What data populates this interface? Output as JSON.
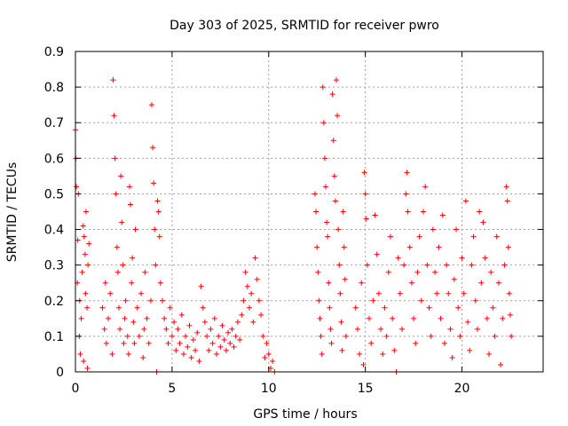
{
  "chart_data": {
    "type": "scatter",
    "title": "Day 303 of 2025, SRMTID for receiver pwro",
    "xlabel": "GPS time / hours",
    "ylabel": "SRMTID / TECUs",
    "xlim": [
      0,
      24.2
    ],
    "ylim": [
      0,
      0.9
    ],
    "xticks": [
      0,
      5,
      10,
      15,
      20
    ],
    "xtick_labels": [
      "0",
      "5",
      "10",
      "15",
      "20"
    ],
    "yticks": [
      0,
      0.1,
      0.2,
      0.3,
      0.4,
      0.5,
      0.6,
      0.7,
      0.8,
      0.9
    ],
    "ytick_labels": [
      "0",
      "0.1",
      "0.2",
      "0.3",
      "0.4",
      "0.5",
      "0.6",
      "0.7",
      "0.8",
      "0.9"
    ],
    "grid": true,
    "marker": "+",
    "color": "#ff0000",
    "series": [
      {
        "name": "SRMTID",
        "points": [
          [
            0.0,
            0.68
          ],
          [
            0.02,
            0.6
          ],
          [
            0.05,
            0.52
          ],
          [
            0.1,
            0.25
          ],
          [
            0.12,
            0.37
          ],
          [
            0.15,
            0.5
          ],
          [
            0.2,
            0.1
          ],
          [
            0.22,
            0.2
          ],
          [
            0.25,
            0.05
          ],
          [
            0.3,
            0.15
          ],
          [
            0.35,
            0.28
          ],
          [
            0.4,
            0.41
          ],
          [
            0.42,
            0.03
          ],
          [
            0.45,
            0.38
          ],
          [
            0.5,
            0.33
          ],
          [
            0.52,
            0.22
          ],
          [
            0.55,
            0.45
          ],
          [
            0.6,
            0.18
          ],
          [
            0.62,
            0.01
          ],
          [
            0.65,
            0.3
          ],
          [
            0.7,
            0.36
          ],
          [
            1.4,
            0.18
          ],
          [
            1.5,
            0.12
          ],
          [
            1.55,
            0.25
          ],
          [
            1.6,
            0.08
          ],
          [
            1.7,
            0.15
          ],
          [
            1.8,
            0.22
          ],
          [
            1.9,
            0.05
          ],
          [
            1.95,
            0.82
          ],
          [
            2.0,
            0.72
          ],
          [
            2.05,
            0.6
          ],
          [
            2.1,
            0.5
          ],
          [
            2.15,
            0.35
          ],
          [
            2.2,
            0.28
          ],
          [
            2.25,
            0.18
          ],
          [
            2.3,
            0.12
          ],
          [
            2.35,
            0.55
          ],
          [
            2.4,
            0.42
          ],
          [
            2.45,
            0.3
          ],
          [
            2.5,
            0.08
          ],
          [
            2.55,
            0.15
          ],
          [
            2.6,
            0.2
          ],
          [
            2.7,
            0.1
          ],
          [
            2.75,
            0.05
          ],
          [
            2.8,
            0.52
          ],
          [
            2.85,
            0.47
          ],
          [
            2.9,
            0.25
          ],
          [
            2.95,
            0.32
          ],
          [
            3.0,
            0.14
          ],
          [
            3.05,
            0.08
          ],
          [
            3.1,
            0.4
          ],
          [
            3.2,
            0.18
          ],
          [
            3.3,
            0.1
          ],
          [
            3.4,
            0.22
          ],
          [
            3.5,
            0.04
          ],
          [
            3.55,
            0.12
          ],
          [
            3.6,
            0.28
          ],
          [
            3.7,
            0.15
          ],
          [
            3.8,
            0.08
          ],
          [
            3.9,
            0.2
          ],
          [
            3.95,
            0.75
          ],
          [
            4.0,
            0.63
          ],
          [
            4.05,
            0.53
          ],
          [
            4.1,
            0.4
          ],
          [
            4.15,
            0.3
          ],
          [
            4.2,
            0.0
          ],
          [
            4.25,
            0.48
          ],
          [
            4.3,
            0.45
          ],
          [
            4.35,
            0.38
          ],
          [
            4.4,
            0.25
          ],
          [
            4.5,
            0.2
          ],
          [
            4.6,
            0.15
          ],
          [
            4.7,
            0.12
          ],
          [
            4.8,
            0.08
          ],
          [
            4.9,
            0.18
          ],
          [
            5.0,
            0.1
          ],
          [
            5.1,
            0.14
          ],
          [
            5.2,
            0.06
          ],
          [
            5.3,
            0.12
          ],
          [
            5.4,
            0.08
          ],
          [
            5.5,
            0.16
          ],
          [
            5.6,
            0.05
          ],
          [
            5.7,
            0.1
          ],
          [
            5.8,
            0.07
          ],
          [
            5.9,
            0.13
          ],
          [
            6.0,
            0.04
          ],
          [
            6.1,
            0.09
          ],
          [
            6.2,
            0.06
          ],
          [
            6.3,
            0.11
          ],
          [
            6.4,
            0.03
          ],
          [
            6.5,
            0.24
          ],
          [
            6.6,
            0.18
          ],
          [
            6.7,
            0.14
          ],
          [
            6.8,
            0.1
          ],
          [
            6.9,
            0.06
          ],
          [
            7.0,
            0.12
          ],
          [
            7.1,
            0.08
          ],
          [
            7.2,
            0.15
          ],
          [
            7.3,
            0.05
          ],
          [
            7.4,
            0.1
          ],
          [
            7.5,
            0.07
          ],
          [
            7.6,
            0.13
          ],
          [
            7.7,
            0.09
          ],
          [
            7.8,
            0.06
          ],
          [
            7.9,
            0.11
          ],
          [
            8.0,
            0.08
          ],
          [
            8.1,
            0.12
          ],
          [
            8.2,
            0.07
          ],
          [
            8.3,
            0.1
          ],
          [
            8.4,
            0.14
          ],
          [
            8.5,
            0.09
          ],
          [
            8.6,
            0.16
          ],
          [
            8.7,
            0.2
          ],
          [
            8.8,
            0.28
          ],
          [
            8.9,
            0.24
          ],
          [
            9.0,
            0.18
          ],
          [
            9.1,
            0.22
          ],
          [
            9.2,
            0.14
          ],
          [
            9.3,
            0.32
          ],
          [
            9.4,
            0.26
          ],
          [
            9.5,
            0.2
          ],
          [
            9.6,
            0.16
          ],
          [
            9.7,
            0.1
          ],
          [
            9.8,
            0.04
          ],
          [
            9.9,
            0.08
          ],
          [
            10.0,
            0.05
          ],
          [
            10.1,
            0.01
          ],
          [
            10.2,
            0.03
          ],
          [
            10.3,
            0.0
          ],
          [
            12.4,
            0.5
          ],
          [
            12.45,
            0.45
          ],
          [
            12.5,
            0.35
          ],
          [
            12.55,
            0.28
          ],
          [
            12.6,
            0.2
          ],
          [
            12.65,
            0.15
          ],
          [
            12.7,
            0.1
          ],
          [
            12.75,
            0.05
          ],
          [
            12.8,
            0.8
          ],
          [
            12.85,
            0.7
          ],
          [
            12.9,
            0.6
          ],
          [
            12.95,
            0.52
          ],
          [
            13.0,
            0.42
          ],
          [
            13.05,
            0.38
          ],
          [
            13.1,
            0.25
          ],
          [
            13.15,
            0.18
          ],
          [
            13.2,
            0.12
          ],
          [
            13.25,
            0.08
          ],
          [
            13.3,
            0.78
          ],
          [
            13.35,
            0.65
          ],
          [
            13.4,
            0.55
          ],
          [
            13.45,
            0.48
          ],
          [
            13.5,
            0.82
          ],
          [
            13.55,
            0.72
          ],
          [
            13.6,
            0.4
          ],
          [
            13.65,
            0.3
          ],
          [
            13.7,
            0.22
          ],
          [
            13.75,
            0.14
          ],
          [
            13.8,
            0.06
          ],
          [
            13.85,
            0.45
          ],
          [
            13.9,
            0.35
          ],
          [
            13.95,
            0.26
          ],
          [
            14.0,
            0.1
          ],
          [
            14.5,
            0.18
          ],
          [
            14.6,
            0.12
          ],
          [
            14.7,
            0.05
          ],
          [
            14.8,
            0.25
          ],
          [
            14.9,
            0.02
          ],
          [
            14.95,
            0.56
          ],
          [
            15.0,
            0.5
          ],
          [
            15.05,
            0.43
          ],
          [
            15.1,
            0.3
          ],
          [
            15.2,
            0.15
          ],
          [
            15.3,
            0.08
          ],
          [
            15.4,
            0.2
          ],
          [
            15.5,
            0.44
          ],
          [
            15.6,
            0.33
          ],
          [
            15.7,
            0.22
          ],
          [
            15.8,
            0.12
          ],
          [
            15.9,
            0.05
          ],
          [
            16.0,
            0.18
          ],
          [
            16.1,
            0.1
          ],
          [
            16.2,
            0.28
          ],
          [
            16.3,
            0.38
          ],
          [
            16.4,
            0.15
          ],
          [
            16.5,
            0.06
          ],
          [
            16.6,
            0.0
          ],
          [
            16.7,
            0.32
          ],
          [
            16.8,
            0.22
          ],
          [
            16.9,
            0.12
          ],
          [
            17.0,
            0.3
          ],
          [
            17.1,
            0.5
          ],
          [
            17.15,
            0.56
          ],
          [
            17.2,
            0.45
          ],
          [
            17.3,
            0.35
          ],
          [
            17.4,
            0.25
          ],
          [
            17.5,
            0.15
          ],
          [
            17.6,
            0.08
          ],
          [
            17.7,
            0.28
          ],
          [
            17.8,
            0.38
          ],
          [
            17.9,
            0.2
          ],
          [
            18.0,
            0.45
          ],
          [
            18.1,
            0.52
          ],
          [
            18.2,
            0.3
          ],
          [
            18.3,
            0.18
          ],
          [
            18.4,
            0.1
          ],
          [
            18.5,
            0.4
          ],
          [
            18.6,
            0.28
          ],
          [
            18.7,
            0.22
          ],
          [
            18.8,
            0.35
          ],
          [
            18.9,
            0.15
          ],
          [
            19.0,
            0.44
          ],
          [
            19.1,
            0.08
          ],
          [
            19.2,
            0.3
          ],
          [
            19.3,
            0.22
          ],
          [
            19.4,
            0.12
          ],
          [
            19.5,
            0.04
          ],
          [
            19.6,
            0.26
          ],
          [
            19.7,
            0.4
          ],
          [
            19.8,
            0.18
          ],
          [
            19.9,
            0.1
          ],
          [
            20.0,
            0.32
          ],
          [
            20.1,
            0.22
          ],
          [
            20.2,
            0.48
          ],
          [
            20.3,
            0.14
          ],
          [
            20.4,
            0.06
          ],
          [
            20.5,
            0.3
          ],
          [
            20.6,
            0.38
          ],
          [
            20.7,
            0.2
          ],
          [
            20.8,
            0.12
          ],
          [
            20.9,
            0.45
          ],
          [
            21.0,
            0.25
          ],
          [
            21.1,
            0.42
          ],
          [
            21.2,
            0.32
          ],
          [
            21.3,
            0.15
          ],
          [
            21.4,
            0.05
          ],
          [
            21.5,
            0.28
          ],
          [
            21.6,
            0.18
          ],
          [
            21.7,
            0.1
          ],
          [
            21.8,
            0.38
          ],
          [
            21.9,
            0.25
          ],
          [
            22.0,
            0.02
          ],
          [
            22.1,
            0.15
          ],
          [
            22.2,
            0.3
          ],
          [
            22.3,
            0.52
          ],
          [
            22.35,
            0.48
          ],
          [
            22.4,
            0.35
          ],
          [
            22.45,
            0.22
          ],
          [
            22.5,
            0.16
          ],
          [
            22.55,
            0.1
          ]
        ]
      }
    ]
  }
}
